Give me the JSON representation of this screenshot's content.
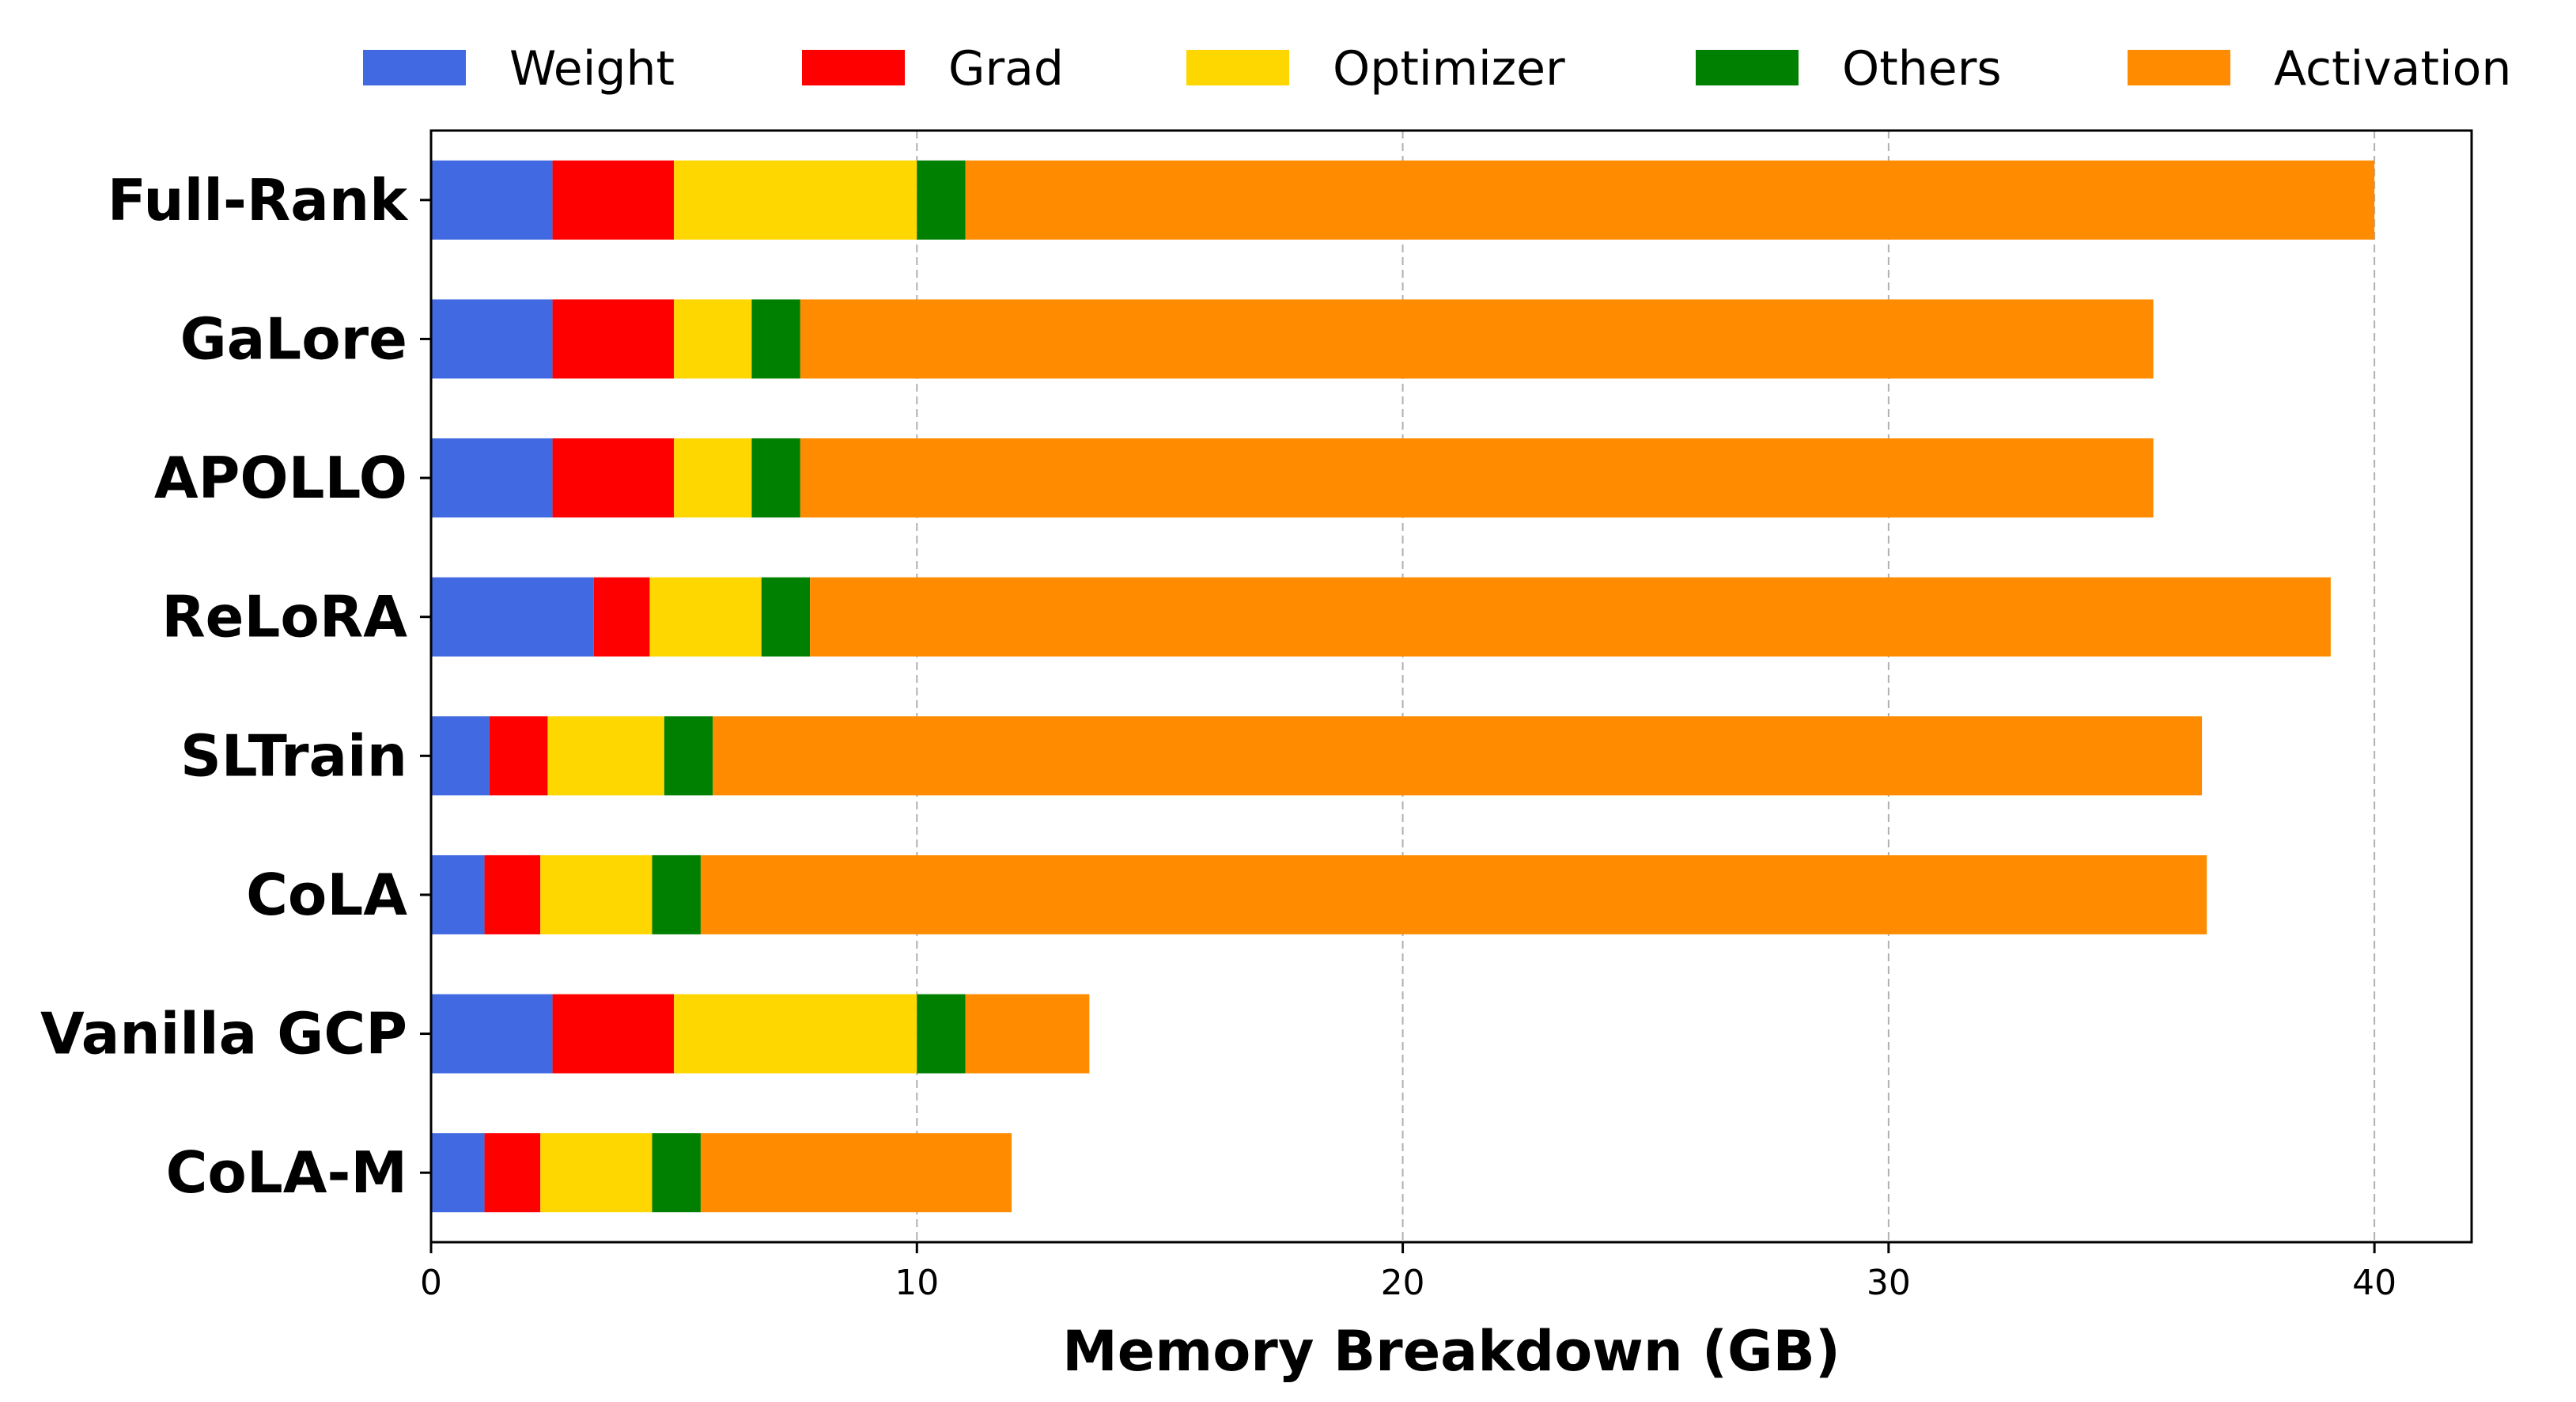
{
  "chart_data": {
    "type": "bar",
    "orientation": "horizontal",
    "stacked": true,
    "title": "",
    "xlabel": "Memory Breakdown (GB)",
    "ylabel": "",
    "xlim": [
      0,
      42
    ],
    "xticks": [
      0,
      10,
      20,
      30,
      40
    ],
    "grid": "x, dashed",
    "legend_position": "top",
    "categories": [
      "Full-Rank",
      "GaLore",
      "APOLLO",
      "ReLoRA",
      "SLTrain",
      "CoLA",
      "Vanilla GCP",
      "CoLA-M"
    ],
    "series": [
      {
        "name": "Weight",
        "color": "#4169e1",
        "values": [
          2.5,
          2.5,
          2.5,
          3.35,
          1.2,
          1.1,
          2.5,
          1.1
        ]
      },
      {
        "name": "Grad",
        "color": "#ff0000",
        "values": [
          2.5,
          2.5,
          2.5,
          1.15,
          1.2,
          1.15,
          2.5,
          1.15
        ]
      },
      {
        "name": "Optimizer",
        "color": "#ffd700",
        "values": [
          5.0,
          1.6,
          1.6,
          2.3,
          2.4,
          2.3,
          5.0,
          2.3
        ]
      },
      {
        "name": "Others",
        "color": "#008000",
        "values": [
          1.0,
          1.0,
          1.0,
          1.0,
          1.0,
          1.0,
          1.0,
          1.0
        ]
      },
      {
        "name": "Activation",
        "color": "#ff8c00",
        "values": [
          29.0,
          27.85,
          27.85,
          31.3,
          30.65,
          31.0,
          2.55,
          6.4
        ]
      }
    ]
  }
}
